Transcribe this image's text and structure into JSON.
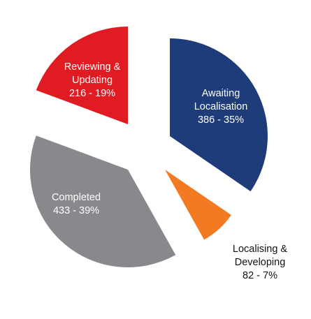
{
  "chart_data": {
    "type": "pie",
    "title": "",
    "legend": "none",
    "slices": [
      {
        "label_lines": [
          "Awaiting",
          "Localisation"
        ],
        "count": 386,
        "percent": 35,
        "value_text": "386 - 35%",
        "color": "#1f3c7a",
        "text_color": "#ffffff"
      },
      {
        "label_lines": [
          "Localising &",
          "Developing"
        ],
        "count": 82,
        "percent": 7,
        "value_text": "82 - 7%",
        "color": "#f37a23",
        "text_color": "#111111"
      },
      {
        "label_lines": [
          "Completed"
        ],
        "count": 433,
        "percent": 39,
        "value_text": "433 - 39%",
        "color": "#88898c",
        "text_color": "#ffffff"
      },
      {
        "label_lines": [
          "Reviewing &",
          "Updating"
        ],
        "count": 216,
        "percent": 19,
        "value_text": "216 - 19%",
        "color": "#e11b22",
        "text_color": "#ffffff"
      }
    ]
  }
}
